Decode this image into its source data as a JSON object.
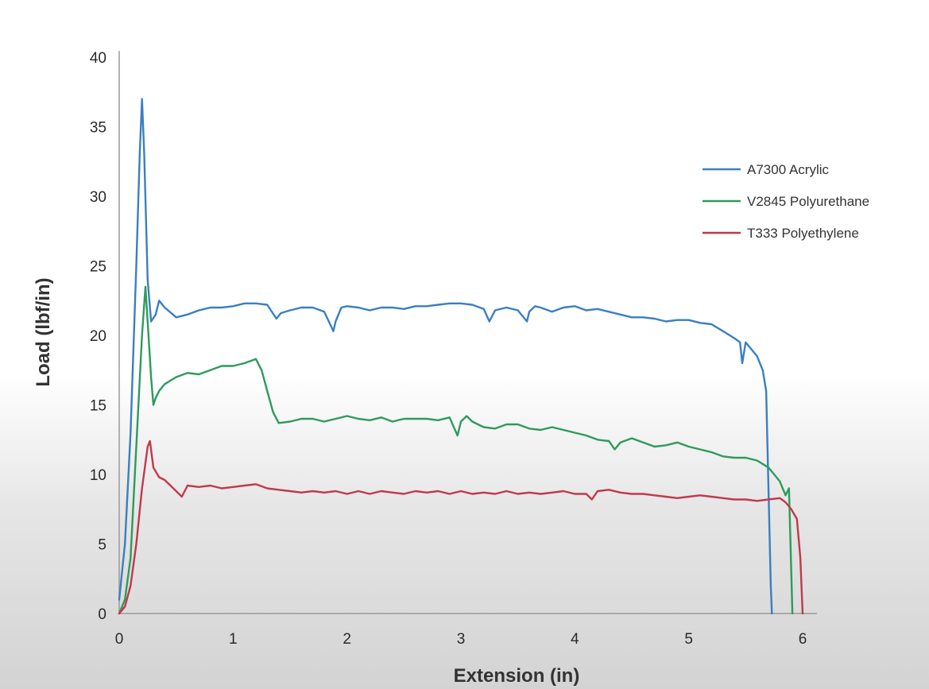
{
  "chart_data": {
    "type": "line",
    "title": "",
    "xlabel": "Extension (in)",
    "ylabel": "Load (lbf/in)",
    "xlim": [
      0,
      6
    ],
    "ylim": [
      0,
      40
    ],
    "xticks": [
      "0",
      "1",
      "2",
      "3",
      "4",
      "5",
      "6"
    ],
    "yticks": [
      "0",
      "5",
      "10",
      "15",
      "20",
      "25",
      "30",
      "35",
      "40"
    ],
    "grid": false,
    "legend_position": "right",
    "series": [
      {
        "name": "A7300 Acrylic",
        "color": "#3a7fc1",
        "x": [
          0,
          0.05,
          0.1,
          0.15,
          0.18,
          0.2,
          0.22,
          0.25,
          0.28,
          0.32,
          0.35,
          0.4,
          0.5,
          0.6,
          0.7,
          0.8,
          0.9,
          1.0,
          1.1,
          1.2,
          1.3,
          1.38,
          1.42,
          1.5,
          1.6,
          1.7,
          1.8,
          1.88,
          1.9,
          1.95,
          2.0,
          2.1,
          2.2,
          2.3,
          2.4,
          2.5,
          2.6,
          2.7,
          2.8,
          2.9,
          3.0,
          3.1,
          3.2,
          3.25,
          3.3,
          3.4,
          3.5,
          3.58,
          3.6,
          3.65,
          3.7,
          3.8,
          3.9,
          4.0,
          4.1,
          4.2,
          4.3,
          4.4,
          4.5,
          4.6,
          4.7,
          4.8,
          4.9,
          5.0,
          5.1,
          5.2,
          5.3,
          5.4,
          5.45,
          5.47,
          5.5,
          5.55,
          5.6,
          5.65,
          5.68,
          5.7,
          5.72,
          5.73
        ],
        "values": [
          1,
          5,
          13,
          25,
          33,
          37,
          33,
          24,
          21,
          21.5,
          22.5,
          22,
          21.3,
          21.5,
          21.8,
          22,
          22,
          22.1,
          22.3,
          22.3,
          22.2,
          21.2,
          21.6,
          21.8,
          22,
          22,
          21.7,
          20.3,
          21,
          22,
          22.1,
          22,
          21.8,
          22,
          22,
          21.9,
          22.1,
          22.1,
          22.2,
          22.3,
          22.3,
          22.2,
          21.9,
          21,
          21.8,
          22,
          21.8,
          21,
          21.7,
          22.1,
          22,
          21.7,
          22,
          22.1,
          21.8,
          21.9,
          21.7,
          21.5,
          21.3,
          21.3,
          21.2,
          21,
          21.1,
          21.1,
          20.9,
          20.8,
          20.3,
          19.8,
          19.5,
          18,
          19.5,
          19,
          18.5,
          17.5,
          16,
          9,
          2,
          0
        ]
      },
      {
        "name": "V2845 Polyurethane",
        "color": "#2e9b5a",
        "x": [
          0,
          0.05,
          0.1,
          0.15,
          0.2,
          0.23,
          0.25,
          0.28,
          0.3,
          0.32,
          0.35,
          0.4,
          0.5,
          0.6,
          0.7,
          0.8,
          0.9,
          1.0,
          1.1,
          1.2,
          1.25,
          1.3,
          1.35,
          1.4,
          1.5,
          1.6,
          1.7,
          1.8,
          1.9,
          2.0,
          2.1,
          2.2,
          2.3,
          2.4,
          2.5,
          2.6,
          2.7,
          2.8,
          2.9,
          2.97,
          3.0,
          3.05,
          3.1,
          3.2,
          3.3,
          3.4,
          3.5,
          3.6,
          3.7,
          3.8,
          3.9,
          4.0,
          4.1,
          4.2,
          4.3,
          4.35,
          4.4,
          4.5,
          4.6,
          4.7,
          4.8,
          4.9,
          5.0,
          5.1,
          5.2,
          5.3,
          5.4,
          5.5,
          5.6,
          5.7,
          5.75,
          5.8,
          5.85,
          5.88,
          5.9,
          5.91
        ],
        "values": [
          0,
          1,
          4,
          12,
          20,
          23.5,
          21,
          17,
          15,
          15.5,
          16,
          16.5,
          17,
          17.3,
          17.2,
          17.5,
          17.8,
          17.8,
          18,
          18.3,
          17.5,
          16,
          14.5,
          13.7,
          13.8,
          14,
          14,
          13.8,
          14,
          14.2,
          14,
          13.9,
          14.1,
          13.8,
          14,
          14,
          14,
          13.9,
          14.1,
          12.8,
          13.8,
          14.2,
          13.8,
          13.4,
          13.3,
          13.6,
          13.6,
          13.3,
          13.2,
          13.4,
          13.2,
          13,
          12.8,
          12.5,
          12.4,
          11.8,
          12.3,
          12.6,
          12.3,
          12,
          12.1,
          12.3,
          12,
          11.8,
          11.6,
          11.3,
          11.2,
          11.2,
          11,
          10.5,
          10,
          9.5,
          8.5,
          9,
          3,
          0
        ]
      },
      {
        "name": "T333 Polyethylene",
        "color": "#c0394b",
        "x": [
          0,
          0.05,
          0.1,
          0.15,
          0.2,
          0.25,
          0.27,
          0.3,
          0.35,
          0.4,
          0.5,
          0.55,
          0.6,
          0.7,
          0.8,
          0.9,
          1.0,
          1.1,
          1.2,
          1.3,
          1.4,
          1.5,
          1.6,
          1.7,
          1.8,
          1.9,
          2.0,
          2.1,
          2.2,
          2.3,
          2.4,
          2.5,
          2.6,
          2.7,
          2.8,
          2.9,
          3.0,
          3.1,
          3.2,
          3.3,
          3.4,
          3.5,
          3.6,
          3.7,
          3.8,
          3.9,
          4.0,
          4.1,
          4.15,
          4.2,
          4.3,
          4.4,
          4.5,
          4.6,
          4.7,
          4.8,
          4.9,
          5.0,
          5.1,
          5.2,
          5.3,
          5.4,
          5.5,
          5.6,
          5.7,
          5.8,
          5.85,
          5.9,
          5.95,
          5.98,
          6.0
        ],
        "values": [
          0,
          0.5,
          2,
          5,
          9,
          12,
          12.4,
          10.5,
          9.8,
          9.6,
          8.8,
          8.4,
          9.2,
          9.1,
          9.2,
          9,
          9.1,
          9.2,
          9.3,
          9,
          8.9,
          8.8,
          8.7,
          8.8,
          8.7,
          8.8,
          8.6,
          8.8,
          8.6,
          8.8,
          8.7,
          8.6,
          8.8,
          8.7,
          8.8,
          8.6,
          8.8,
          8.6,
          8.7,
          8.6,
          8.8,
          8.6,
          8.7,
          8.6,
          8.7,
          8.8,
          8.6,
          8.6,
          8.2,
          8.8,
          8.9,
          8.7,
          8.6,
          8.6,
          8.5,
          8.4,
          8.3,
          8.4,
          8.5,
          8.4,
          8.3,
          8.2,
          8.2,
          8.1,
          8.2,
          8.3,
          8,
          7.5,
          6.8,
          4,
          0
        ]
      }
    ]
  }
}
